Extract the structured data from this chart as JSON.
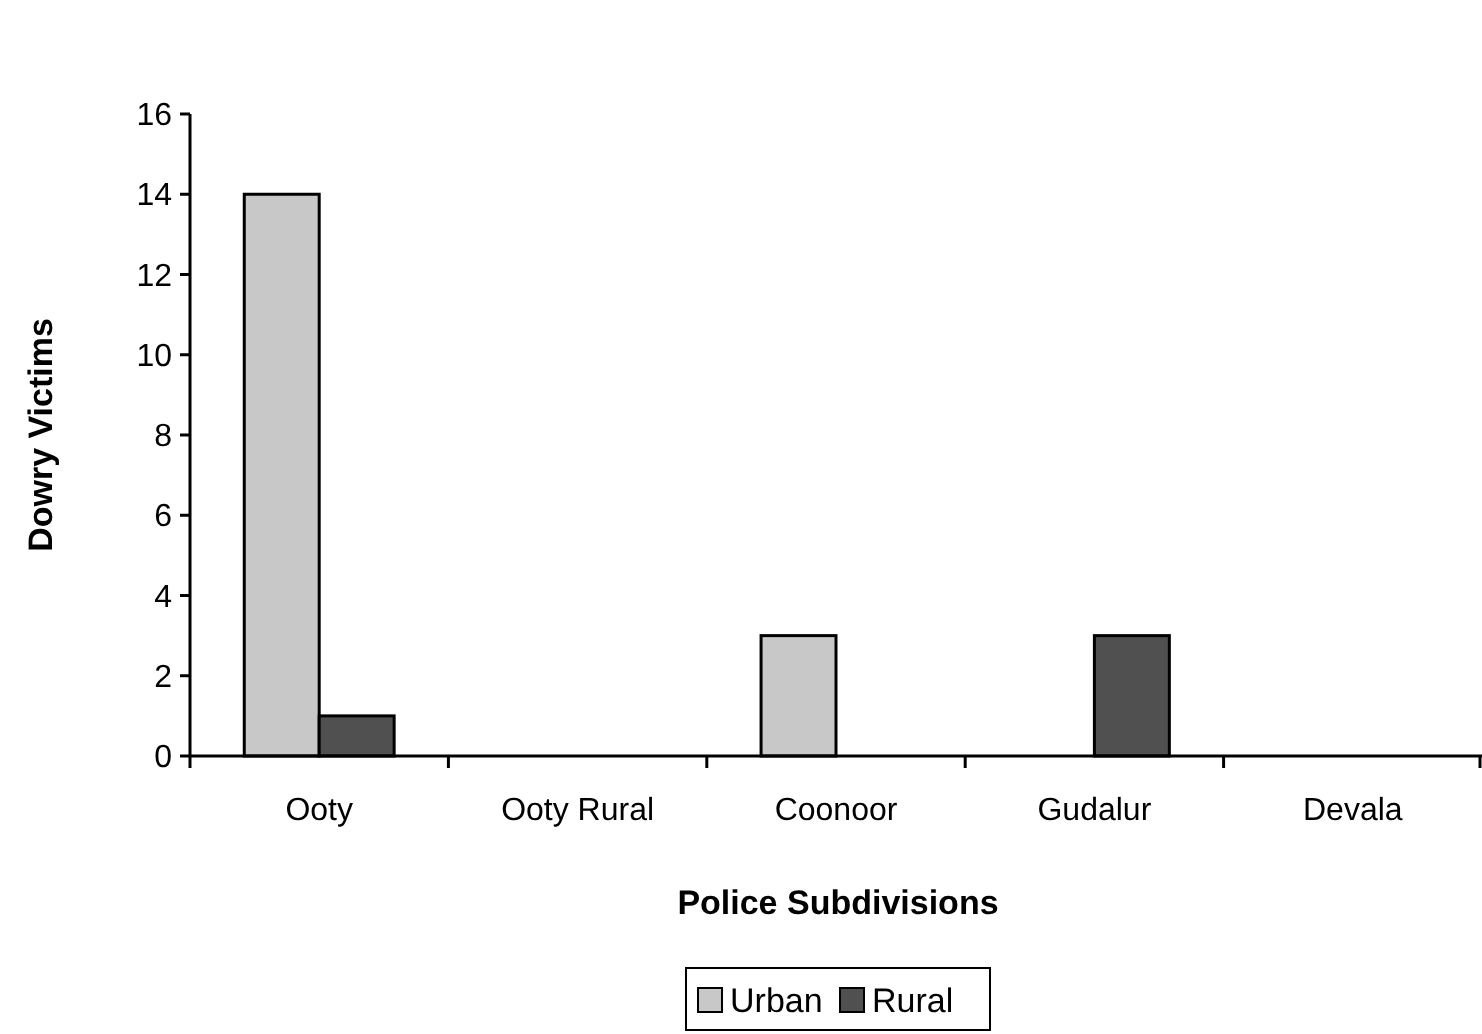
{
  "chart_data": {
    "type": "bar",
    "xlabel": "Police Subdivisions",
    "ylabel": "Dowry Victims",
    "categories": [
      "Ooty",
      "Ooty Rural",
      "Coonoor",
      "Gudalur",
      "Devala"
    ],
    "series": [
      {
        "name": "Urban",
        "color": "#c8c8c8",
        "values": [
          14,
          0,
          3,
          0,
          0
        ]
      },
      {
        "name": "Rural",
        "color": "#505050",
        "values": [
          1,
          0,
          0,
          3,
          0
        ]
      }
    ],
    "ylim": [
      0,
      16
    ],
    "yticks": [
      0,
      2,
      4,
      6,
      8,
      10,
      12,
      14,
      16
    ],
    "grid": false,
    "legend": "bottom"
  }
}
